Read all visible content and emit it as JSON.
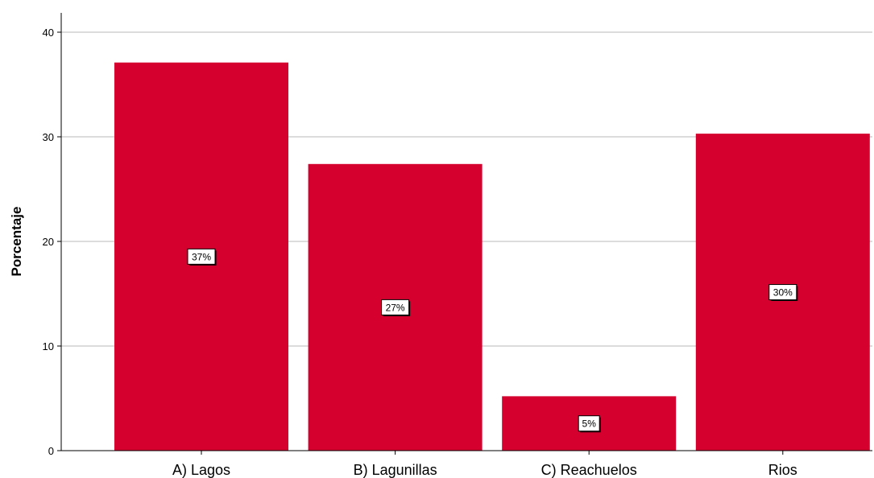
{
  "chart_data": {
    "type": "bar",
    "categories": [
      "A) Lagos",
      "B) Lagunillas",
      "C) Reachuelos",
      "Rios"
    ],
    "values": [
      37.1,
      27.4,
      5.2,
      30.3
    ],
    "data_labels": [
      "37%",
      "27%",
      "5%",
      "30%"
    ],
    "title": "",
    "xlabel": "",
    "ylabel": "Porcentaje",
    "ylim": [
      0,
      40
    ],
    "yticks": [
      0,
      10,
      20,
      30,
      40
    ],
    "grid": true,
    "bar_color": "#d6002f",
    "gridline_color": "#c8c8c8"
  }
}
